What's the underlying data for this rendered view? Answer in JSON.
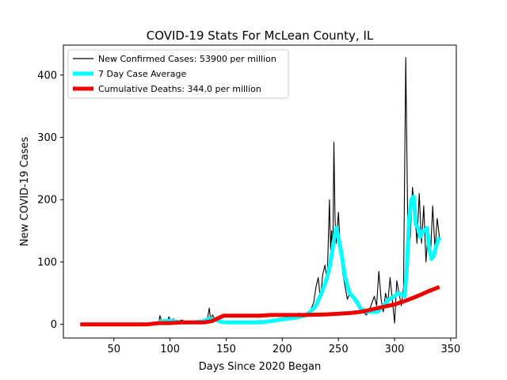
{
  "chart_data": {
    "type": "line",
    "title": "COVID-19 Stats For McLean County, IL",
    "xlabel": "Days Since 2020 Began",
    "ylabel": "New COVID-19 Cases",
    "xlim": [
      5,
      355
    ],
    "ylim": [
      -22,
      448
    ],
    "x_ticks": [
      50,
      100,
      150,
      200,
      250,
      300,
      350
    ],
    "y_ticks": [
      0,
      100,
      200,
      300,
      400
    ],
    "grid": false,
    "legend_position": "top-left",
    "series": [
      {
        "name": "New Confirmed Cases: 53900 per million",
        "color": "#000000",
        "style": "thin-line",
        "x": [
          20,
          40,
          60,
          80,
          86,
          90,
          91,
          93,
          95,
          97,
          99,
          101,
          103,
          105,
          110,
          115,
          120,
          125,
          130,
          133,
          135,
          136,
          138,
          140,
          145,
          150,
          155,
          160,
          165,
          170,
          175,
          180,
          185,
          190,
          195,
          200,
          205,
          210,
          215,
          220,
          225,
          228,
          230,
          232,
          234,
          236,
          238,
          240,
          242,
          243,
          244,
          245,
          246,
          247,
          248,
          250,
          252,
          254,
          256,
          258,
          260,
          262,
          265,
          268,
          270,
          272,
          275,
          278,
          280,
          282,
          284,
          286,
          288,
          290,
          292,
          294,
          296,
          298,
          300,
          302,
          304,
          306,
          308,
          310,
          312,
          314,
          316,
          318,
          320,
          322,
          324,
          326,
          328,
          330,
          332,
          334,
          336,
          338,
          340
        ],
        "values": [
          0,
          0,
          0,
          1,
          2,
          4,
          14,
          3,
          8,
          2,
          12,
          5,
          9,
          3,
          7,
          4,
          2,
          3,
          5,
          6,
          26,
          10,
          15,
          8,
          5,
          4,
          3,
          5,
          4,
          3,
          5,
          6,
          4,
          5,
          8,
          10,
          12,
          15,
          18,
          12,
          22,
          35,
          60,
          75,
          40,
          80,
          95,
          70,
          200,
          120,
          150,
          110,
          292,
          170,
          130,
          180,
          110,
          80,
          60,
          40,
          50,
          45,
          35,
          30,
          25,
          20,
          15,
          25,
          35,
          45,
          30,
          85,
          40,
          20,
          50,
          35,
          75,
          40,
          2,
          70,
          50,
          30,
          60,
          428,
          120,
          140,
          220,
          180,
          130,
          210,
          130,
          190,
          100,
          150,
          110,
          190,
          120,
          170,
          140
        ]
      },
      {
        "name": "7 Day Case Average",
        "color": "#00ffff",
        "style": "thick-line",
        "x": [
          90,
          100,
          110,
          120,
          130,
          135,
          140,
          145,
          150,
          160,
          170,
          180,
          190,
          200,
          210,
          220,
          225,
          230,
          235,
          240,
          243,
          246,
          248,
          250,
          253,
          256,
          260,
          265,
          270,
          275,
          280,
          285,
          290,
          295,
          300,
          303,
          306,
          309,
          311,
          313,
          315,
          317,
          319,
          321,
          323,
          325,
          327,
          329,
          331,
          333,
          335,
          337,
          340
        ],
        "values": [
          4,
          6,
          3,
          3,
          5,
          9,
          8,
          4,
          3,
          3,
          3,
          3,
          5,
          8,
          10,
          14,
          20,
          30,
          50,
          75,
          100,
          135,
          155,
          140,
          110,
          75,
          50,
          40,
          25,
          20,
          20,
          20,
          30,
          40,
          45,
          50,
          48,
          45,
          90,
          170,
          200,
          205,
          160,
          155,
          140,
          150,
          150,
          155,
          120,
          105,
          110,
          125,
          140
        ]
      },
      {
        "name": "Cumulative Deaths: 344.0 per million",
        "color": "#ee0000",
        "style": "thick-line",
        "x": [
          20,
          40,
          60,
          80,
          90,
          100,
          110,
          120,
          130,
          137,
          143,
          148,
          160,
          180,
          190,
          200,
          220,
          240,
          250,
          260,
          270,
          280,
          290,
          300,
          310,
          320,
          330,
          340
        ],
        "values": [
          0,
          0,
          0,
          0,
          2,
          2,
          3,
          3,
          3,
          5,
          10,
          14,
          14,
          14,
          15,
          15,
          15,
          16,
          17,
          18,
          20,
          24,
          28,
          32,
          38,
          45,
          53,
          60
        ]
      }
    ]
  }
}
